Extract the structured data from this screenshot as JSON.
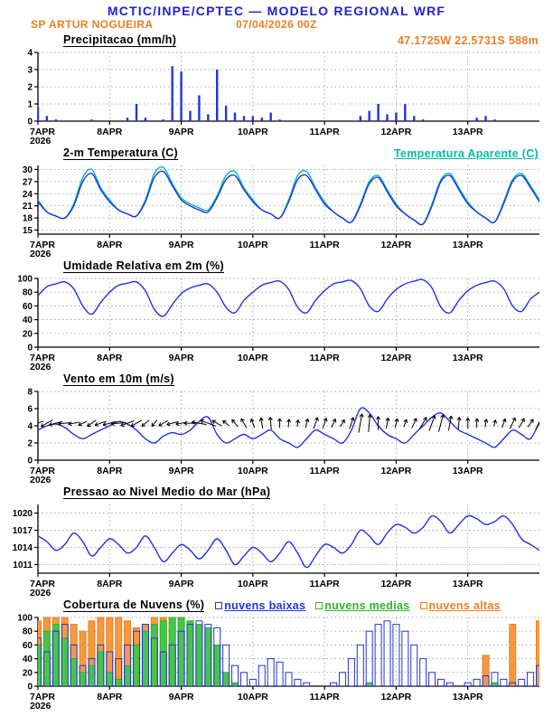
{
  "header": {
    "title": "MCTIC/INPE/CPTEC — MODELO REGIONAL WRF",
    "station": "SP ARTUR NOGUEIRA",
    "run": "07/04/2026 00Z",
    "location": "47.1725W 22.5731S 588m"
  },
  "colors": {
    "header_blue": "#2222cc",
    "orange": "#ee7e22",
    "series_blue": "#2233dd",
    "cyan": "#00bbaa",
    "green": "#2db52d",
    "axis": "#000000",
    "grid": "#888888"
  },
  "x_axis": {
    "tick_labels": [
      "7APR",
      "8APR",
      "9APR",
      "10APR",
      "11APR",
      "12APR",
      "13APR"
    ],
    "year_label": "2026",
    "tick_hours": [
      0,
      24,
      48,
      72,
      96,
      120,
      144
    ],
    "total_hours": 168,
    "step_hours": 3
  },
  "chart_data": [
    {
      "type": "bar",
      "title": "Precipitacao (mm/h)",
      "ylabel": "mm/h",
      "ylim": [
        0,
        4
      ],
      "yticks": [
        4,
        3,
        2,
        1,
        0
      ],
      "color": "#2233dd",
      "values": [
        0.8,
        0.3,
        0.1,
        0,
        0,
        0,
        0.1,
        0,
        0,
        0,
        0.2,
        1.0,
        0.2,
        0,
        0.1,
        3.2,
        2.9,
        0.6,
        1.5,
        0.4,
        3.0,
        0.9,
        0.5,
        0.3,
        0.3,
        0.2,
        0.5,
        0.1,
        0,
        0,
        0,
        0,
        0,
        0,
        0,
        0,
        0.3,
        0.6,
        1.0,
        0.4,
        0.5,
        1.0,
        0.3,
        0.1,
        0,
        0,
        0,
        0,
        0,
        0.2,
        0.3,
        0.1,
        0,
        0,
        0,
        0,
        0
      ]
    },
    {
      "type": "line",
      "title": "2-m Temperatura (C)",
      "right_label": "Temperatura Aparente (C)",
      "ylim": [
        14,
        31
      ],
      "yticks": [
        30,
        27,
        24,
        21,
        18,
        15
      ],
      "series": [
        {
          "name": "Temperatura Aparente (C)",
          "color": "#00bbaa",
          "values": [
            22.5,
            19.5,
            18.5,
            18,
            21.5,
            28,
            30,
            25.5,
            22.5,
            20,
            19,
            18.5,
            22.5,
            29,
            30.5,
            26.5,
            23,
            21.5,
            20.5,
            20,
            23.5,
            28.5,
            29.5,
            25.5,
            22.5,
            20,
            19,
            18,
            22.5,
            28.5,
            29.5,
            25.5,
            22,
            19.5,
            18,
            17,
            21.5,
            27,
            28.5,
            25,
            21.5,
            19,
            17.5,
            16.5,
            21.5,
            27.5,
            29,
            25.5,
            22,
            19.5,
            18,
            17,
            22,
            27.5,
            29,
            26,
            22.5
          ]
        },
        {
          "name": "2-m Temperatura (C)",
          "color": "#2233dd",
          "values": [
            22,
            19.5,
            18.5,
            18,
            21,
            27,
            29,
            25,
            22,
            20,
            19,
            18.5,
            22,
            28,
            29.5,
            26,
            22.5,
            21,
            20,
            19.5,
            23,
            27.5,
            28.5,
            25,
            22,
            20,
            19,
            18,
            22,
            27.5,
            28.5,
            25,
            21.5,
            19.5,
            18,
            17,
            21,
            26.5,
            28,
            24.5,
            21,
            19,
            17.5,
            16.5,
            21,
            27,
            28.5,
            25,
            21.5,
            19.5,
            18,
            17,
            21.5,
            27,
            28.5,
            25.5,
            22
          ]
        }
      ]
    },
    {
      "type": "line",
      "title": "Umidade Relativa em 2m (%)",
      "ylim": [
        0,
        100
      ],
      "yticks": [
        100,
        80,
        60,
        40,
        20,
        0
      ],
      "series": [
        {
          "name": "Umidade Relativa em 2m",
          "color": "#2233dd",
          "values": [
            75,
            88,
            92,
            95,
            85,
            60,
            48,
            65,
            80,
            90,
            93,
            95,
            82,
            55,
            45,
            62,
            78,
            86,
            90,
            92,
            80,
            58,
            50,
            68,
            80,
            90,
            94,
            96,
            84,
            58,
            50,
            68,
            82,
            92,
            95,
            97,
            85,
            60,
            52,
            70,
            84,
            92,
            96,
            98,
            86,
            58,
            50,
            68,
            82,
            90,
            94,
            96,
            85,
            60,
            52,
            70,
            80
          ]
        }
      ]
    },
    {
      "type": "wind",
      "title": "Vento em 10m (m/s)",
      "ylim": [
        0,
        8
      ],
      "yticks": [
        8,
        6,
        4,
        2,
        0
      ],
      "line_color": "#2233dd",
      "arrow_color": "#000000",
      "arrow_anchor_value": 4.3,
      "speed": [
        3.5,
        4,
        4.2,
        3.8,
        3,
        2.5,
        3,
        3.5,
        4,
        4.5,
        4.2,
        3.5,
        2.5,
        2,
        2.8,
        3.2,
        3,
        3.5,
        4.5,
        5,
        3,
        2,
        2.5,
        3,
        2.5,
        3,
        3.5,
        2.5,
        2,
        1.5,
        2.5,
        3.5,
        3,
        2.5,
        2,
        3.5,
        6,
        5.5,
        4,
        3,
        2.5,
        2,
        3,
        4,
        5,
        5.5,
        4.5,
        3.5,
        3,
        2.5,
        2,
        1.5,
        2.5,
        3.5,
        3,
        2.5,
        4.5
      ],
      "dir_deg": [
        200,
        210,
        195,
        185,
        190,
        205,
        215,
        200,
        195,
        185,
        200,
        210,
        220,
        230,
        210,
        195,
        190,
        180,
        170,
        160,
        150,
        140,
        130,
        120,
        110,
        100,
        95,
        90,
        85,
        80,
        75,
        70,
        70,
        65,
        60,
        70,
        80,
        85,
        90,
        80,
        75,
        70,
        65,
        60,
        70,
        75,
        80,
        85,
        90,
        85,
        80,
        75,
        70,
        65,
        60,
        55,
        60
      ]
    },
    {
      "type": "line",
      "title": "Pressao ao Nivel Medio do Mar (hPa)",
      "ylim": [
        1009.5,
        1021.5
      ],
      "yticks": [
        1020,
        1017,
        1014,
        1011
      ],
      "series": [
        {
          "name": "Pressao ao Nivel Medio do Mar",
          "color": "#2233dd",
          "values": [
            1016,
            1015,
            1013.5,
            1014.5,
            1016.5,
            1015,
            1012.5,
            1014,
            1015.5,
            1014.5,
            1013,
            1014,
            1016,
            1014,
            1011.5,
            1013,
            1014.5,
            1013.5,
            1012,
            1013.5,
            1015.5,
            1013.5,
            1011,
            1012.5,
            1014,
            1013,
            1011.5,
            1013,
            1015,
            1013,
            1010.5,
            1012.5,
            1014.5,
            1014,
            1013,
            1014.5,
            1017,
            1016,
            1014.5,
            1016.5,
            1018,
            1017.5,
            1016.5,
            1017.5,
            1019.5,
            1018.5,
            1016.5,
            1018,
            1019.5,
            1019,
            1018,
            1018.5,
            1019.5,
            1018,
            1015.5,
            1014.5,
            1013.5
          ]
        }
      ]
    },
    {
      "type": "bar-multi",
      "title": "Cobertura de Nuvens (%)",
      "ylim": [
        0,
        100
      ],
      "yticks": [
        100,
        80,
        60,
        40,
        20,
        0
      ],
      "legend": [
        {
          "label": "nuvens baixas",
          "color": "#2233dd"
        },
        {
          "label": "nuvens medias",
          "color": "#2db52d"
        },
        {
          "label": "nuvens altas",
          "color": "#ee7e22"
        }
      ],
      "series": [
        {
          "name": "nuvens altas",
          "stroke": "#ee7e22",
          "fill": "#f39a3e",
          "values": [
            95,
            100,
            100,
            100,
            90,
            80,
            95,
            100,
            100,
            100,
            95,
            85,
            90,
            100,
            100,
            100,
            95,
            80,
            60,
            30,
            10,
            0,
            0,
            0,
            0,
            0,
            0,
            0,
            0,
            0,
            0,
            0,
            0,
            0,
            0,
            0,
            0,
            0,
            0,
            0,
            0,
            0,
            0,
            0,
            0,
            0,
            0,
            0,
            0,
            0,
            45,
            0,
            0,
            90,
            0,
            0,
            95
          ]
        },
        {
          "name": "nuvens medias",
          "stroke": "#2db52d",
          "fill": "#49c44a",
          "values": [
            60,
            80,
            90,
            70,
            40,
            20,
            30,
            50,
            20,
            10,
            30,
            60,
            80,
            90,
            95,
            100,
            100,
            95,
            90,
            85,
            60,
            20,
            5,
            0,
            0,
            0,
            0,
            0,
            0,
            0,
            0,
            0,
            0,
            0,
            0,
            0,
            0,
            5,
            0,
            0,
            0,
            0,
            0,
            0,
            0,
            0,
            0,
            0,
            0,
            0,
            0,
            5,
            0,
            0,
            0,
            0,
            0
          ]
        },
        {
          "name": "nuvens baixas",
          "stroke": "#2233dd",
          "fill": "none",
          "values": [
            70,
            50,
            80,
            90,
            60,
            30,
            40,
            60,
            50,
            40,
            60,
            80,
            90,
            70,
            50,
            60,
            80,
            90,
            95,
            90,
            85,
            60,
            30,
            20,
            10,
            30,
            40,
            35,
            20,
            10,
            5,
            0,
            0,
            5,
            20,
            40,
            60,
            80,
            90,
            95,
            90,
            80,
            60,
            40,
            20,
            10,
            5,
            0,
            5,
            10,
            15,
            20,
            10,
            5,
            10,
            20,
            30
          ]
        }
      ]
    }
  ]
}
